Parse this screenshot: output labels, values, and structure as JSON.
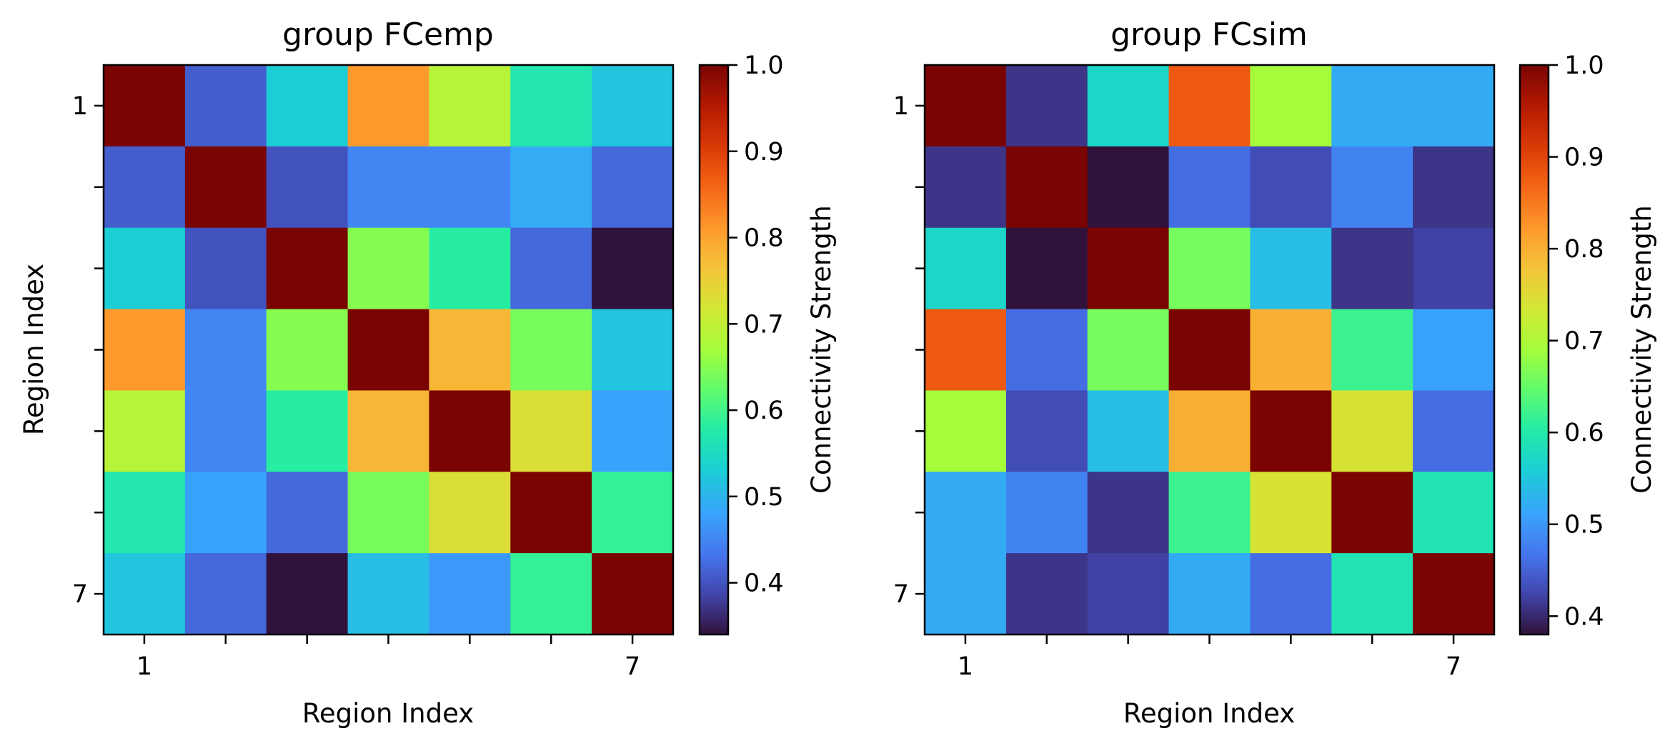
{
  "chart_data": [
    {
      "type": "heatmap",
      "title": "group FCemp",
      "xlabel": "Region Index",
      "ylabel": "Region Index",
      "xtick_labels": [
        "1",
        "",
        "",
        "",
        "",
        "",
        "7"
      ],
      "ytick_labels": [
        "1",
        "",
        "",
        "",
        "",
        "",
        "7"
      ],
      "colormap": "turbo",
      "colorbar": {
        "label": "Connectivity Strength",
        "vmin": 0.34,
        "vmax": 1.0,
        "ticks": [
          0.4,
          0.5,
          0.6,
          0.7,
          0.8,
          0.9,
          1.0
        ],
        "tick_labels": [
          "0.4",
          "0.5",
          "0.6",
          "0.7",
          "0.8",
          "0.9",
          "1.0"
        ]
      },
      "matrix": [
        [
          1.0,
          0.41,
          0.53,
          0.81,
          0.69,
          0.57,
          0.52
        ],
        [
          0.41,
          1.0,
          0.4,
          0.45,
          0.45,
          0.49,
          0.42
        ],
        [
          0.53,
          0.4,
          1.0,
          0.65,
          0.58,
          0.42,
          0.34
        ],
        [
          0.81,
          0.45,
          0.65,
          1.0,
          0.78,
          0.64,
          0.52
        ],
        [
          0.69,
          0.45,
          0.58,
          0.78,
          1.0,
          0.73,
          0.48
        ],
        [
          0.57,
          0.48,
          0.42,
          0.64,
          0.73,
          1.0,
          0.59
        ],
        [
          0.52,
          0.42,
          0.34,
          0.51,
          0.47,
          0.59,
          1.0
        ]
      ]
    },
    {
      "type": "heatmap",
      "title": "group FCsim",
      "xlabel": "Region Index",
      "ylabel": "",
      "xtick_labels": [
        "1",
        "",
        "",
        "",
        "",
        "",
        "7"
      ],
      "ytick_labels": [
        "1",
        "",
        "",
        "",
        "",
        "",
        "7"
      ],
      "colormap": "turbo",
      "colorbar": {
        "label": "Connectivity Strength",
        "vmin": 0.38,
        "vmax": 1.0,
        "ticks": [
          0.4,
          0.5,
          0.6,
          0.7,
          0.8,
          0.9,
          1.0
        ],
        "tick_labels": [
          "0.4",
          "0.5",
          "0.6",
          "0.7",
          "0.8",
          "0.9",
          "1.0"
        ]
      },
      "matrix": [
        [
          1.0,
          0.41,
          0.57,
          0.88,
          0.69,
          0.52,
          0.52
        ],
        [
          0.41,
          1.0,
          0.38,
          0.46,
          0.43,
          0.48,
          0.41
        ],
        [
          0.57,
          0.38,
          1.0,
          0.66,
          0.54,
          0.41,
          0.42
        ],
        [
          0.88,
          0.46,
          0.66,
          1.0,
          0.8,
          0.62,
          0.51
        ],
        [
          0.69,
          0.43,
          0.54,
          0.8,
          1.0,
          0.74,
          0.46
        ],
        [
          0.52,
          0.48,
          0.41,
          0.62,
          0.74,
          1.0,
          0.59
        ],
        [
          0.52,
          0.41,
          0.42,
          0.52,
          0.46,
          0.59,
          1.0
        ]
      ]
    }
  ]
}
